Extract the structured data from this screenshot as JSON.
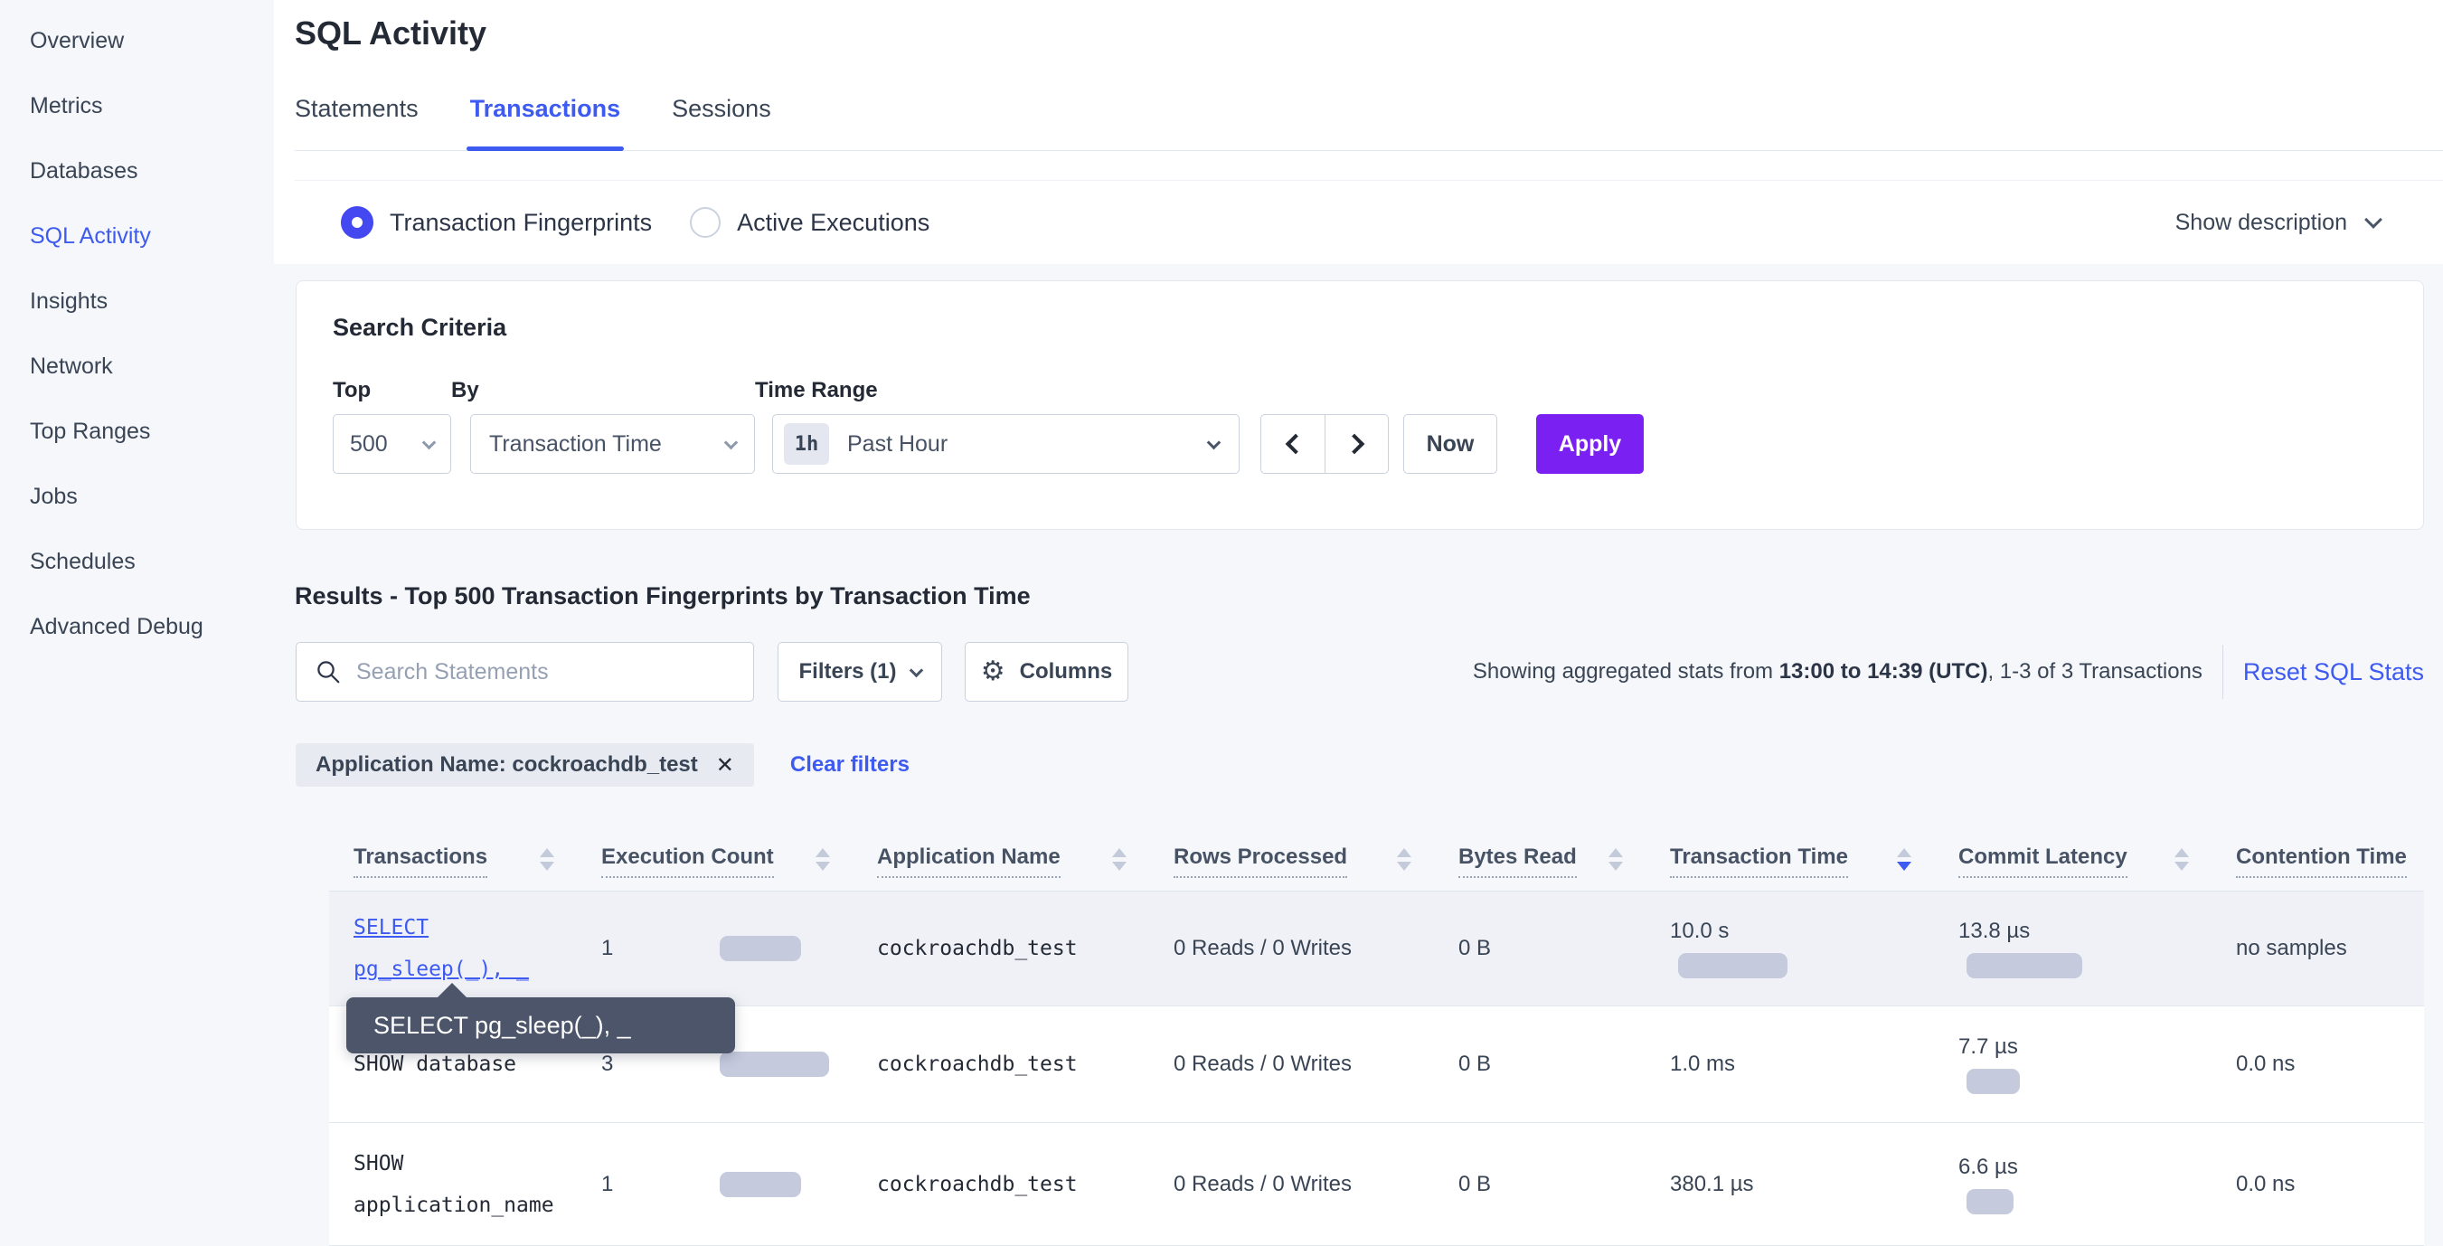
{
  "colors": {
    "accent_blue": "#3d5af1",
    "accent_purple": "#7b20f2",
    "bar_fill": "#c5cadd",
    "page_gray": "#f5f7fa",
    "tooltip_bg": "#4c5569",
    "row_highlight": "#eff1f6"
  },
  "sidebar": {
    "items": [
      {
        "label": "Overview",
        "active": false
      },
      {
        "label": "Metrics",
        "active": false
      },
      {
        "label": "Databases",
        "active": false
      },
      {
        "label": "SQL Activity",
        "active": true
      },
      {
        "label": "Insights",
        "active": false
      },
      {
        "label": "Network",
        "active": false
      },
      {
        "label": "Top Ranges",
        "active": false
      },
      {
        "label": "Jobs",
        "active": false
      },
      {
        "label": "Schedules",
        "active": false
      },
      {
        "label": "Advanced Debug",
        "active": false
      }
    ]
  },
  "header": {
    "title": "SQL Activity",
    "tabs": [
      {
        "label": "Statements",
        "active": false
      },
      {
        "label": "Transactions",
        "active": true
      },
      {
        "label": "Sessions",
        "active": false
      }
    ]
  },
  "view_toggle": {
    "options": [
      {
        "label": "Transaction Fingerprints",
        "selected": true
      },
      {
        "label": "Active Executions",
        "selected": false
      }
    ],
    "show_description_label": "Show description"
  },
  "criteria": {
    "heading": "Search Criteria",
    "top_label": "Top",
    "top_value": "500",
    "by_label": "By",
    "by_value": "Transaction Time",
    "time_range_label": "Time Range",
    "time_range_badge": "1h",
    "time_range_value": "Past Hour",
    "now_label": "Now",
    "apply_label": "Apply"
  },
  "results": {
    "heading": "Results - Top 500 Transaction Fingerprints by Transaction Time",
    "search_placeholder": "Search Statements",
    "filters_label": "Filters (1)",
    "columns_label": "Columns",
    "stats_prefix": "Showing aggregated stats from ",
    "stats_bold": "13:00 to 14:39 (UTC)",
    "stats_suffix": ", 1-3 of 3 Transactions",
    "reset_label": "Reset SQL Stats",
    "filter_chip_label": "Application Name: cockroachdb_test",
    "chip_close": "✕",
    "clear_filters_label": "Clear filters"
  },
  "table": {
    "columns": [
      {
        "label": "Transactions",
        "sort": "none"
      },
      {
        "label": "Execution Count",
        "sort": "none"
      },
      {
        "label": "Application Name",
        "sort": "none"
      },
      {
        "label": "Rows Processed",
        "sort": "none"
      },
      {
        "label": "Bytes Read",
        "sort": "none"
      },
      {
        "label": "Transaction Time",
        "sort": "desc"
      },
      {
        "label": "Commit Latency",
        "sort": "none"
      },
      {
        "label": "Contention Time",
        "sort": "none"
      }
    ],
    "rows": [
      {
        "statement_line1": "SELECT",
        "statement_line2": "pg_sleep(_), _",
        "is_link": true,
        "execution_count": "1",
        "exec_bar_width": 90,
        "app_name": "cockroachdb_test",
        "rows_processed": "0 Reads / 0 Writes",
        "bytes_read": "0 B",
        "transaction_time": "10.0 s",
        "txn_bar_width": 121,
        "commit_latency": "13.8 µs",
        "commit_bar_width": 128,
        "contention_time": "no samples"
      },
      {
        "statement_line1": "SHOW database",
        "is_link": false,
        "execution_count": "3",
        "exec_bar_width": 121,
        "app_name": "cockroachdb_test",
        "rows_processed": "0 Reads / 0 Writes",
        "bytes_read": "0 B",
        "transaction_time": "1.0 ms",
        "commit_latency": "7.7 µs",
        "commit_bar_width": 59,
        "contention_time": "0.0 ns"
      },
      {
        "statement_line1": "SHOW",
        "statement_line2": "application_name",
        "is_link": false,
        "execution_count": "1",
        "exec_bar_width": 90,
        "app_name": "cockroachdb_test",
        "rows_processed": "0 Reads / 0 Writes",
        "bytes_read": "0 B",
        "transaction_time": "380.1 µs",
        "commit_latency": "6.6 µs",
        "commit_bar_width": 52,
        "contention_time": "0.0 ns"
      }
    ]
  },
  "tooltip": {
    "text": "SELECT pg_sleep(_), _"
  }
}
